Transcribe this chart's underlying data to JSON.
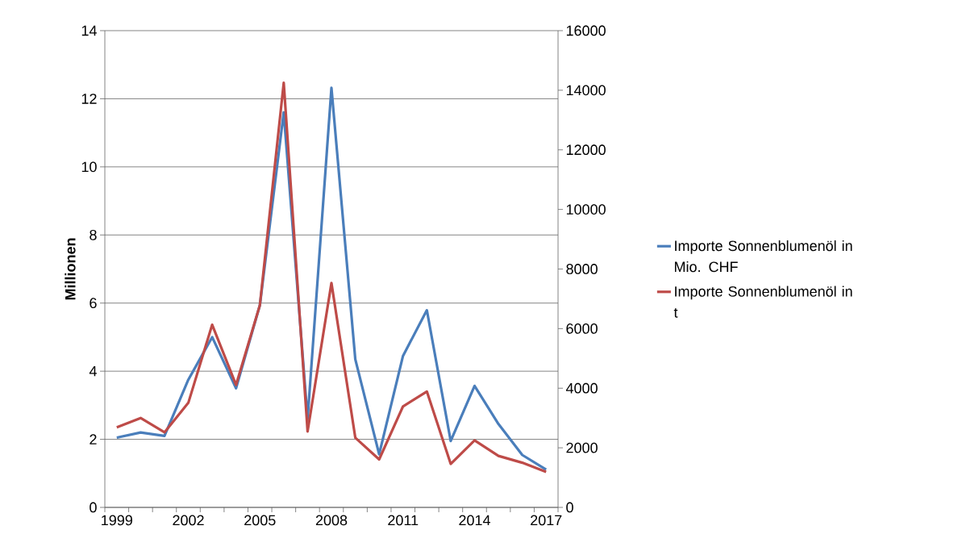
{
  "chart_data": {
    "type": "line",
    "ylabel": "Millionen",
    "categories": [
      "1999",
      null,
      null,
      "2002",
      null,
      null,
      "2005",
      null,
      null,
      "2008",
      null,
      null,
      "2011",
      null,
      null,
      "2014",
      null,
      null,
      "2017"
    ],
    "series": [
      {
        "name": "Importe Sonnenblumenöl in Mio. CHF",
        "color": "#4a7ebb",
        "values": [
          2.05,
          2.2,
          2.1,
          3.75,
          5.0,
          3.5,
          5.94,
          11.6,
          2.6,
          12.32,
          4.35,
          1.56,
          4.45,
          5.79,
          1.95,
          3.57,
          2.45,
          1.54,
          1.11
        ]
      },
      {
        "name": "Importe Sonnenblumenöl in t",
        "color": "#be4b48",
        "axis": "y2",
        "values": [
          2690,
          3000,
          2520,
          3510,
          6130,
          4110,
          6790,
          14250,
          2550,
          7530,
          2340,
          1610,
          3390,
          3890,
          1460,
          2250,
          1730,
          1500,
          1190
        ]
      }
    ],
    "ylim": [
      0,
      14
    ],
    "yticks": [
      0,
      2,
      4,
      6,
      8,
      10,
      12,
      14
    ],
    "y2lim": [
      0,
      16000
    ],
    "y2ticks": [
      0,
      2000,
      4000,
      6000,
      8000,
      10000,
      12000,
      14000,
      16000
    ],
    "grid": "y",
    "legend": "right"
  }
}
